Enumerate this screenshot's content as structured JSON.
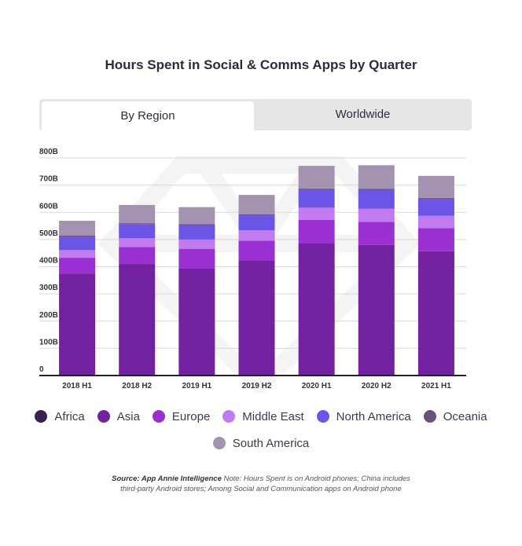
{
  "title": "Hours Spent in Social & Comms Apps by Quarter",
  "tabs": [
    {
      "label": "By Region",
      "active": true
    },
    {
      "label": "Worldwide",
      "active": false
    }
  ],
  "chart_data": {
    "type": "bar",
    "stacked": true,
    "categories": [
      "2018 H1",
      "2018 H2",
      "2019 H1",
      "2019 H2",
      "2020 H1",
      "2020 H2",
      "2021 H1"
    ],
    "yticks": [
      "0",
      "100B",
      "200B",
      "300B",
      "400B",
      "500B",
      "600B",
      "700B",
      "800B"
    ],
    "ylim": [
      0,
      800
    ],
    "grid": true,
    "legend_position": "bottom",
    "series": [
      {
        "name": "Africa",
        "color": "#3a2151",
        "values": [
          2,
          2,
          2,
          2,
          2,
          2,
          2
        ]
      },
      {
        "name": "Asia",
        "color": "#7222a0",
        "values": [
          373,
          408,
          393,
          422,
          485,
          478,
          455
        ]
      },
      {
        "name": "Europe",
        "color": "#9a30d2",
        "values": [
          58,
          62,
          70,
          72,
          85,
          85,
          85
        ]
      },
      {
        "name": "Middle East",
        "color": "#c27af0",
        "values": [
          28,
          33,
          35,
          38,
          45,
          48,
          45
        ]
      },
      {
        "name": "North America",
        "color": "#6a55e6",
        "values": [
          50,
          52,
          53,
          55,
          68,
          70,
          63
        ]
      },
      {
        "name": "Oceania",
        "color": "#6b4f7c",
        "values": [
          3,
          3,
          3,
          3,
          3,
          3,
          3
        ]
      },
      {
        "name": "South America",
        "color": "#a393b0",
        "values": [
          55,
          67,
          63,
          72,
          83,
          87,
          81
        ]
      }
    ]
  },
  "source": {
    "label": "Source: App Annie Intelligence",
    "note_line1": "Note: Hours Spent is on Android phones; China includes",
    "note_line2": "third-party Android stores; Among Social and Communication apps on Android phone"
  }
}
